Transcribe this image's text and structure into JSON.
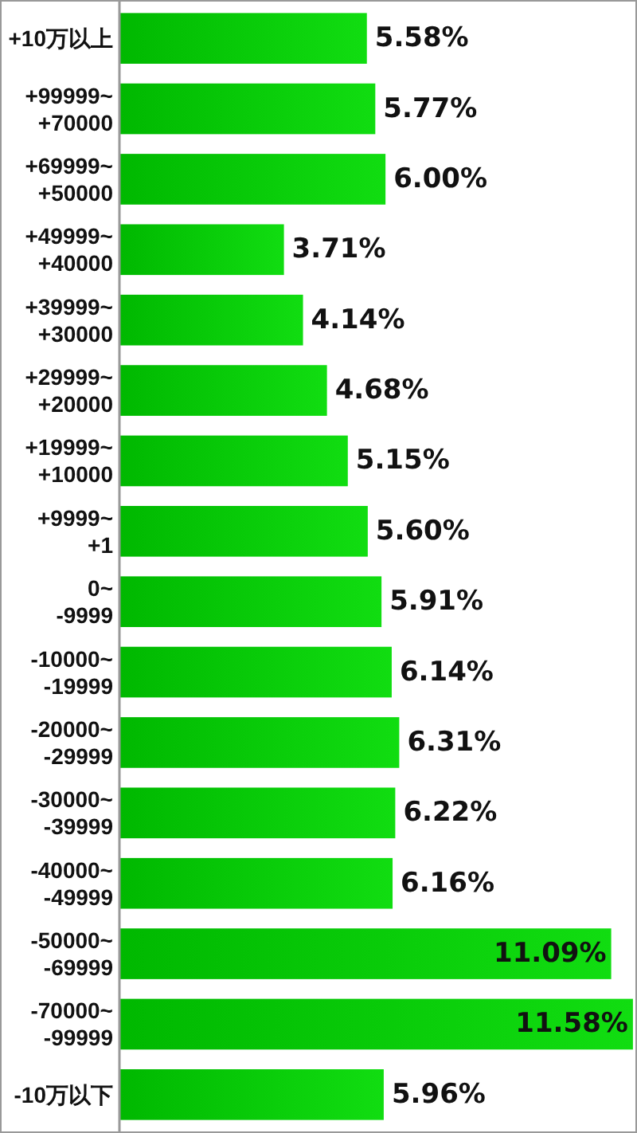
{
  "chart_data": {
    "type": "bar",
    "orientation": "horizontal",
    "data_labels": true,
    "categories": [
      "+10万以上",
      "+99999~\n+70000",
      "+69999~\n+50000",
      "+49999~\n+40000",
      "+39999~\n+30000",
      "+29999~\n+20000",
      "+19999~\n+10000",
      "+9999~\n+1",
      "0~\n-9999",
      "-10000~\n-19999",
      "-20000~\n-29999",
      "-30000~\n-39999",
      "-40000~\n-49999",
      "-50000~\n-69999",
      "-70000~\n-99999",
      "-10万以下"
    ],
    "values": [
      5.58,
      5.77,
      6.0,
      3.71,
      4.14,
      4.68,
      5.15,
      5.6,
      5.91,
      6.14,
      6.31,
      6.22,
      6.16,
      11.09,
      11.58,
      5.96
    ],
    "value_labels": [
      "5.58%",
      "5.77%",
      "6.00%",
      "3.71%",
      "4.14%",
      "4.68%",
      "5.15%",
      "5.60%",
      "5.91%",
      "6.14%",
      "6.31%",
      "6.22%",
      "6.16%",
      "11.09%",
      "11.58%",
      "5.96%"
    ],
    "color": "#11dd11",
    "xlim": [
      0,
      11.6
    ]
  }
}
